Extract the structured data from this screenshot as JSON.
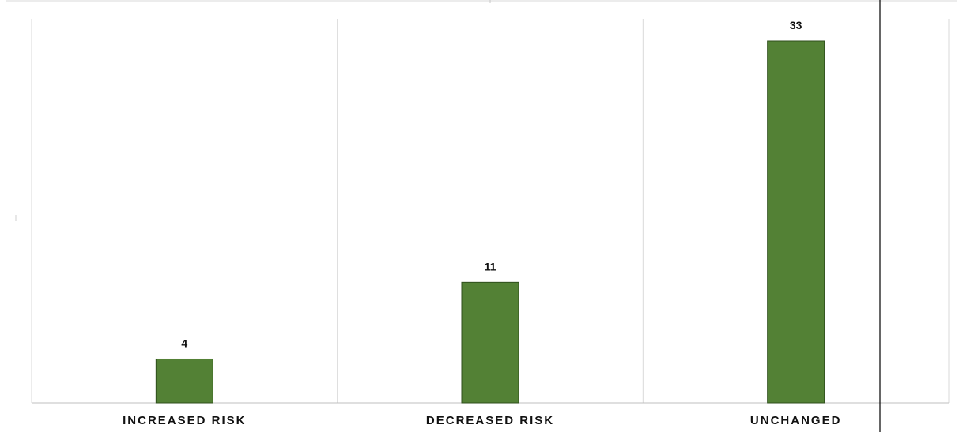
{
  "chart_data": {
    "type": "bar",
    "categories": [
      "INCREASED RISK",
      "DECREASED RISK",
      "UNCHANGED"
    ],
    "values": [
      4,
      11,
      33
    ],
    "data_labels": [
      "4",
      "11",
      "33"
    ],
    "ylim": [
      0,
      33
    ],
    "grid": "vertical category separators",
    "legend": "none",
    "colors": {
      "bar_fill": "#538135",
      "bar_stroke": "#2f4f1c",
      "grid": "#d9d9d9",
      "axis": "#bfbfbf",
      "text": "#111111",
      "overlay_line": "#000000"
    }
  }
}
